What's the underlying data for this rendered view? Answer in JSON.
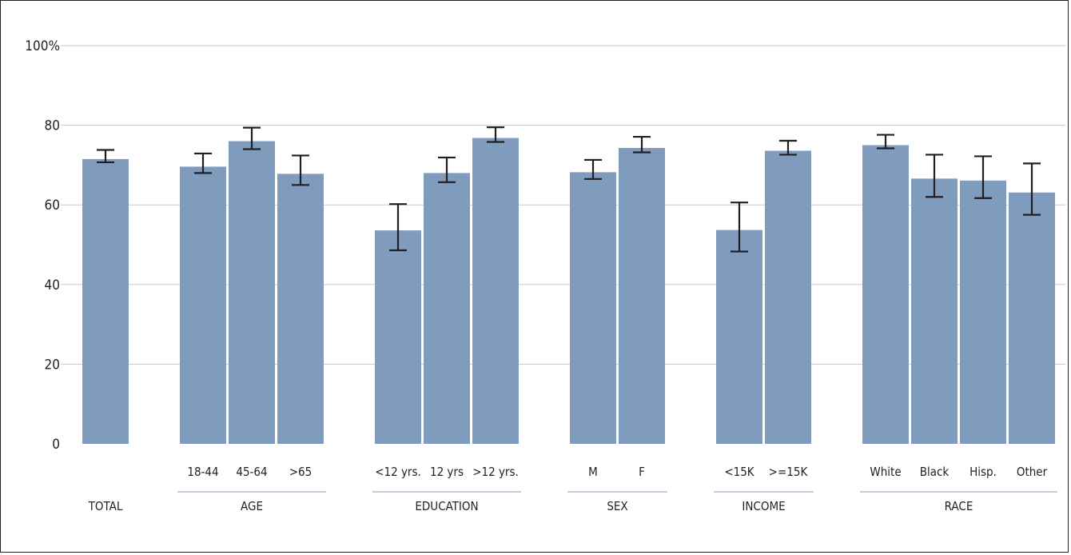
{
  "chart_data": {
    "type": "bar",
    "title": "",
    "xlabel": "",
    "ylabel": "",
    "ylim": [
      0,
      100
    ],
    "yticks": [
      "0",
      "20",
      "40",
      "60",
      "80",
      "100%"
    ],
    "grid": true,
    "colors": {
      "bar": "#7f9cbe",
      "error_bar": "#231f20",
      "grid": "#c9c9c9",
      "group_rule": "#7f9cbe"
    },
    "groups": [
      {
        "label": "TOTAL",
        "bars": [
          {
            "category": "",
            "value": 71.5,
            "ci": [
              70.7,
              73.8
            ]
          }
        ]
      },
      {
        "label": "AGE",
        "bars": [
          {
            "category": "18-44",
            "value": 69.6,
            "ci": [
              68.0,
              72.9
            ]
          },
          {
            "category": "45-64",
            "value": 76.0,
            "ci": [
              74.0,
              79.4
            ]
          },
          {
            "category": ">65",
            "value": 67.8,
            "ci": [
              65.0,
              72.4
            ]
          }
        ]
      },
      {
        "label": "EDUCATION",
        "bars": [
          {
            "category": "<12 yrs.",
            "value": 53.6,
            "ci": [
              48.6,
              60.2
            ]
          },
          {
            "category": "12 yrs",
            "value": 68.0,
            "ci": [
              65.7,
              71.9
            ]
          },
          {
            "category": ">12 yrs.",
            "value": 76.8,
            "ci": [
              75.8,
              79.5
            ]
          }
        ]
      },
      {
        "label": "SEX",
        "bars": [
          {
            "category": "M",
            "value": 68.2,
            "ci": [
              66.5,
              71.3
            ]
          },
          {
            "category": "F",
            "value": 74.3,
            "ci": [
              73.2,
              77.1
            ]
          }
        ]
      },
      {
        "label": "INCOME",
        "bars": [
          {
            "category": "<15K",
            "value": 53.7,
            "ci": [
              48.3,
              60.6
            ]
          },
          {
            "category": ">=15K",
            "value": 73.6,
            "ci": [
              72.6,
              76.1
            ]
          }
        ]
      },
      {
        "label": "RACE",
        "bars": [
          {
            "category": "White",
            "value": 75.0,
            "ci": [
              74.2,
              77.6
            ]
          },
          {
            "category": "Black",
            "value": 66.6,
            "ci": [
              62.0,
              72.6
            ]
          },
          {
            "category": "Hisp.",
            "value": 66.1,
            "ci": [
              61.7,
              72.2
            ]
          },
          {
            "category": "Other",
            "value": 63.1,
            "ci": [
              57.5,
              70.4
            ]
          }
        ]
      }
    ]
  }
}
